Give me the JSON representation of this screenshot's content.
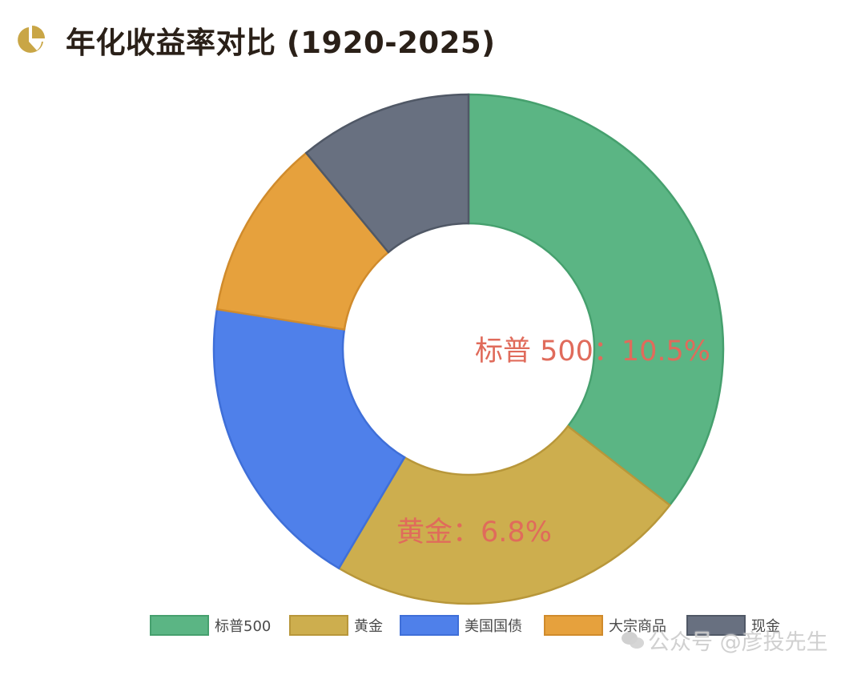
{
  "header": {
    "title": "年化收益率对比 (1920-2025)",
    "icon": "pie-chart-icon",
    "icon_color": "#c9a646"
  },
  "chart_data": {
    "type": "pie",
    "variant": "donut",
    "title": "年化收益率对比 (1920-2025)",
    "categories": [
      "标普500",
      "黄金",
      "美国国债",
      "大宗商品",
      "现金"
    ],
    "values": [
      35.5,
      23.0,
      19.0,
      11.5,
      11.0
    ],
    "colors": [
      "#5bb584",
      "#cdae4e",
      "#4f80ea",
      "#e6a13d",
      "#687080"
    ],
    "border_colors": [
      "#46a06e",
      "#b8973a",
      "#3f6fd8",
      "#d08b2c",
      "#505866"
    ],
    "labels": [
      {
        "series": "标普500",
        "text": "标普 500：10.5%"
      },
      {
        "series": "黄金",
        "text": "黄金：6.8%"
      }
    ],
    "legend_position": "bottom"
  },
  "watermark": {
    "text": "公众号 @彦投先生",
    "icon": "wechat-icon"
  }
}
